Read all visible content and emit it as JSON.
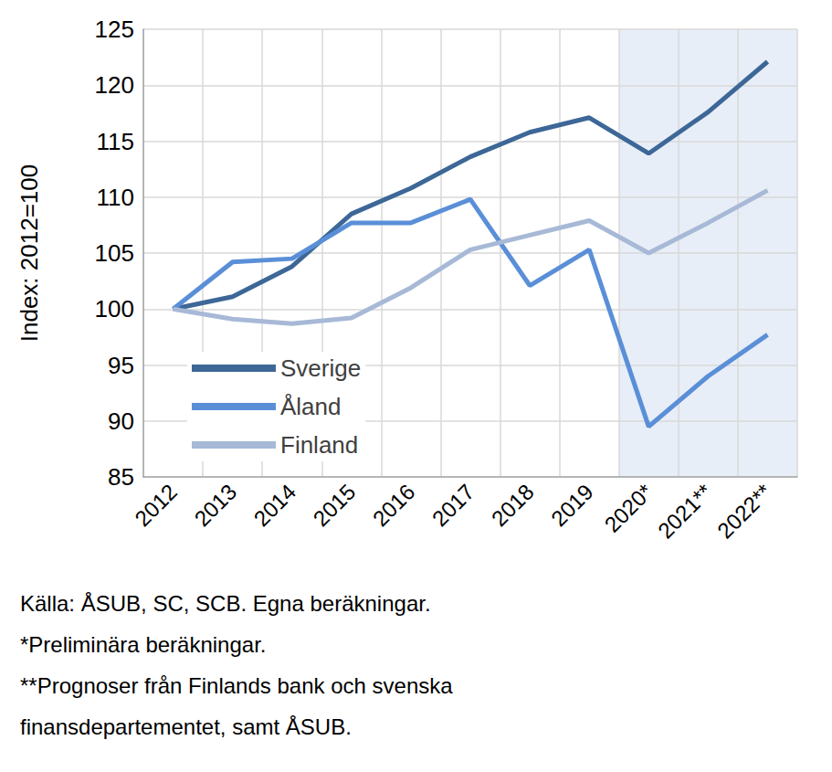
{
  "chart_data": {
    "type": "line",
    "y_label": "Index: 2012=100",
    "categories": [
      "2012",
      "2013",
      "2014",
      "2015",
      "2016",
      "2017",
      "2018",
      "2019",
      "2020*",
      "2021**",
      "2022**"
    ],
    "series": [
      {
        "name": "Sverige",
        "color": "#3d6797",
        "values": [
          100,
          101.1,
          103.8,
          108.5,
          110.8,
          113.6,
          115.8,
          117.1,
          113.9,
          117.6,
          122.1
        ]
      },
      {
        "name": "Åland",
        "color": "#5a8fd8",
        "values": [
          100,
          104.2,
          104.5,
          107.7,
          107.7,
          109.8,
          102.1,
          105.3,
          89.5,
          94.0,
          97.7
        ]
      },
      {
        "name": "Finland",
        "color": "#a7b9d6",
        "values": [
          100,
          99.1,
          98.7,
          99.2,
          101.9,
          105.3,
          106.6,
          107.9,
          105.0,
          107.7,
          110.6
        ]
      }
    ],
    "ylim": [
      85,
      125
    ],
    "yticks": [
      85,
      90,
      95,
      100,
      105,
      110,
      115,
      120,
      125
    ],
    "grid": true,
    "legend": "lower left",
    "shaded_region": {
      "from": "2020*",
      "to": "2022**",
      "color": "#e8eef7"
    },
    "notes": [
      "Källa: ÅSUB, SC, SCB. Egna beräkningar.",
      "*Preliminära beräkningar.",
      "**Prognoser från Finlands bank och svenska",
      "finansdepartementet, samt ÅSUB."
    ]
  }
}
